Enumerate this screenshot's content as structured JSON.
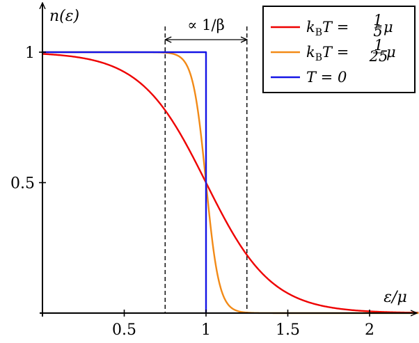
{
  "chart_data": {
    "type": "line",
    "title": "",
    "xlabel": "ε/μ",
    "ylabel": "n(ε)",
    "xlim": [
      0,
      2.3
    ],
    "ylim": [
      0,
      1.18
    ],
    "xticks": [
      0.5,
      1,
      1.5,
      2
    ],
    "xtick_labels": [
      "0.5",
      "1",
      "1.5",
      "2"
    ],
    "yticks": [
      0.5,
      1
    ],
    "ytick_labels": [
      "0.5",
      "1"
    ],
    "grid": false,
    "legend_position": "top-right",
    "series": [
      {
        "name": "kBT = 1/5 μ",
        "color": "#ee0000",
        "kT": 0.2,
        "legend": {
          "pre": "k",
          "sub": "B",
          "post": "T = ",
          "num": "1",
          "den": "5",
          "tail": "μ"
        }
      },
      {
        "name": "kBT = 1/25 μ",
        "color": "#f28a17",
        "kT": 0.04,
        "legend": {
          "pre": "k",
          "sub": "B",
          "post": "T = ",
          "num": "1",
          "den": "25",
          "tail": "μ"
        }
      },
      {
        "name": "T = 0",
        "color": "#1414e6",
        "kT": 0,
        "legend": {
          "pre": "",
          "sub": "",
          "post": "T = 0",
          "num": "",
          "den": "",
          "tail": ""
        }
      }
    ],
    "annotation": {
      "text": "∝ 1/β",
      "x_start": 0.75,
      "x_end": 1.25
    }
  }
}
